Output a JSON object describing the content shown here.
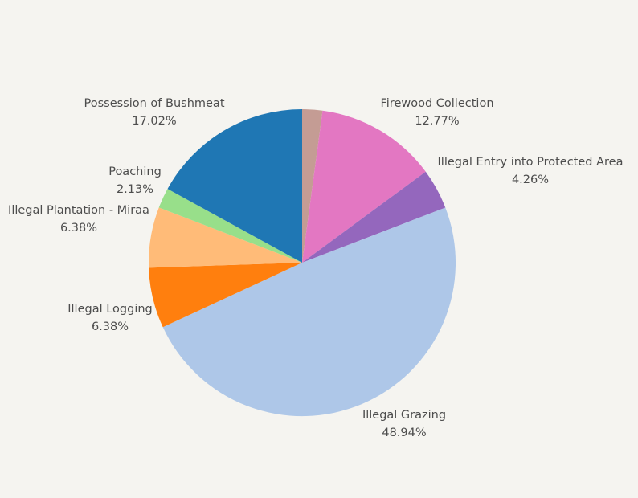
{
  "chart_data": {
    "type": "pie",
    "start_angle_deg": 0,
    "direction": "clockwise",
    "slices": [
      {
        "label": "Unlabeled",
        "value": 2.13,
        "color": "#c49c94"
      },
      {
        "label": "Firewood Collection",
        "value": 12.77,
        "percent_text": "12.77%",
        "color": "#e377c2"
      },
      {
        "label": "Illegal Entry into Protected Area",
        "value": 4.26,
        "percent_text": "4.26%",
        "color": "#9467bd"
      },
      {
        "label": "Illegal Grazing",
        "value": 48.94,
        "percent_text": "48.94%",
        "color": "#aec7e8"
      },
      {
        "label": "Illegal Logging",
        "value": 6.38,
        "percent_text": "6.38%",
        "color": "#ff7f0e"
      },
      {
        "label": "Illegal Plantation - Miraa",
        "value": 6.38,
        "percent_text": "6.38%",
        "color": "#ffbb78"
      },
      {
        "label": "Poaching",
        "value": 2.13,
        "percent_text": "2.13%",
        "color": "#98df8a"
      },
      {
        "label": "Possession of Bushmeat",
        "value": 17.02,
        "percent_text": "17.02%",
        "color": "#1f77b4"
      }
    ]
  },
  "labels": {
    "firewood": {
      "name": "Firewood Collection",
      "pct": "12.77%"
    },
    "entry": {
      "name": "Illegal Entry into Protected Area",
      "pct": "4.26%"
    },
    "grazing": {
      "name": "Illegal Grazing",
      "pct": "48.94%"
    },
    "logging": {
      "name": "Illegal Logging",
      "pct": "6.38%"
    },
    "plantation": {
      "name": "Illegal Plantation - Miraa",
      "pct": "6.38%"
    },
    "poaching": {
      "name": "Poaching",
      "pct": "2.13%"
    },
    "bushmeat": {
      "name": "Possession of Bushmeat",
      "pct": "17.02%"
    }
  }
}
